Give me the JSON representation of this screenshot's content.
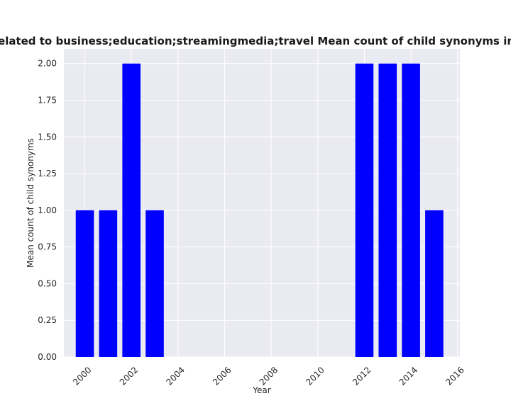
{
  "chart_data": {
    "type": "bar",
    "title": "are related to business;education;streamingmedia;travel Mean count of child synonyms in priv",
    "xlabel": "Year",
    "ylabel": "Mean count of child synonyms",
    "x": [
      2000,
      2001,
      2002,
      2003,
      2012,
      2013,
      2014,
      2015
    ],
    "values": [
      1,
      1,
      2,
      1,
      2,
      2,
      2,
      1
    ],
    "xlim": [
      1999.1,
      2016.1
    ],
    "ylim": [
      0,
      2.1
    ],
    "xticks": [
      2000,
      2002,
      2004,
      2006,
      2008,
      2010,
      2012,
      2014,
      2016
    ],
    "yticks": [
      "0.00",
      "0.25",
      "0.50",
      "0.75",
      "1.00",
      "1.25",
      "1.50",
      "1.75",
      "2.00"
    ],
    "grid": true,
    "colors": {
      "bar": "#0000ff",
      "plot_bg": "#eaeaf2",
      "grid": "#ffffff"
    }
  }
}
